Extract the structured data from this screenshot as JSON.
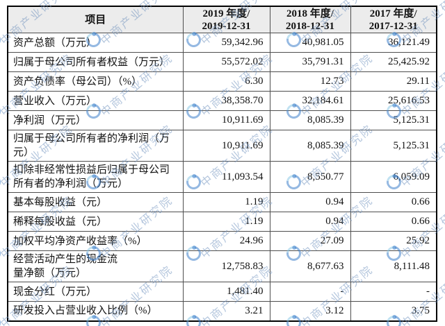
{
  "watermark": {
    "text": "中商产业研究院",
    "logo_icon": "askci-circle-logo",
    "text_color": "#7092be",
    "logo_color": "#3e80ca"
  },
  "table": {
    "header": {
      "item_label": "项目",
      "year_columns": [
        "2019 年度/\n2019-12-31",
        "2018 年度/\n2018-12-31",
        "2017 年度/\n2017-12-31"
      ]
    },
    "rows": [
      {
        "label": "资产总额（万元）",
        "values": [
          "59,342.96",
          "40,981.05",
          "36,121.49"
        ]
      },
      {
        "label": "归属于母公司所有者权益（万元）",
        "values": [
          "55,572.02",
          "35,791.31",
          "25,425.92"
        ]
      },
      {
        "label": "资产负债率（母公司）（%）",
        "values": [
          "6.30",
          "12.73",
          "29.11"
        ]
      },
      {
        "label": "营业收入（万元）",
        "values": [
          "38,358.70",
          "32,184.61",
          "25,616.53"
        ]
      },
      {
        "label": "净利润（万元）",
        "values": [
          "10,911.69",
          "8,085.39",
          "5,125.31"
        ]
      },
      {
        "label": "归属于母公司所有者的净利润（万\n元）",
        "values": [
          "10,911.69",
          "8,085.39",
          "5,125.31"
        ]
      },
      {
        "label": "扣除非经常性损益后归属于母公司\n所有者的净利润（万元）",
        "values": [
          "11,093.54",
          "8,550.77",
          "6,059.09"
        ]
      },
      {
        "label": "基本每股收益（元）",
        "values": [
          "1.19",
          "0.94",
          "0.66"
        ]
      },
      {
        "label": "稀释每股收益（元）",
        "values": [
          "1.19",
          "0.94",
          "0.66"
        ]
      },
      {
        "label": "加权平均净资产收益率（%）",
        "values": [
          "24.96",
          "27.09",
          "25.92"
        ]
      },
      {
        "label": "经营活动产生的现金流\n量净额（万元）",
        "values": [
          "12,758.83",
          "8,677.63",
          "8,111.48"
        ]
      },
      {
        "label": "现金分红（万元）",
        "values": [
          "1,481.40",
          "-",
          "-"
        ]
      },
      {
        "label": "研发投入占营业收入比例（%）",
        "values": [
          "3.21",
          "3.12",
          "3.75"
        ]
      }
    ]
  },
  "chart_data": {
    "type": "table",
    "columns": [
      "项目",
      "2019 年度/2019-12-31",
      "2018 年度/2018-12-31",
      "2017 年度/2017-12-31"
    ],
    "rows": [
      [
        "资产总额（万元）",
        59342.96,
        40981.05,
        36121.49
      ],
      [
        "归属于母公司所有者权益（万元）",
        55572.02,
        35791.31,
        25425.92
      ],
      [
        "资产负债率（母公司）（%）",
        6.3,
        12.73,
        29.11
      ],
      [
        "营业收入（万元）",
        38358.7,
        32184.61,
        25616.53
      ],
      [
        "净利润（万元）",
        10911.69,
        8085.39,
        5125.31
      ],
      [
        "归属于母公司所有者的净利润（万元）",
        10911.69,
        8085.39,
        5125.31
      ],
      [
        "扣除非经常性损益后归属于母公司所有者的净利润（万元）",
        11093.54,
        8550.77,
        6059.09
      ],
      [
        "基本每股收益（元）",
        1.19,
        0.94,
        0.66
      ],
      [
        "稀释每股收益（元）",
        1.19,
        0.94,
        0.66
      ],
      [
        "加权平均净资产收益率（%）",
        24.96,
        27.09,
        25.92
      ],
      [
        "经营活动产生的现金流量净额（万元）",
        12758.83,
        8677.63,
        8111.48
      ],
      [
        "现金分红（万元）",
        1481.4,
        null,
        null
      ],
      [
        "研发投入占营业收入比例（%）",
        3.21,
        3.12,
        3.75
      ]
    ]
  }
}
